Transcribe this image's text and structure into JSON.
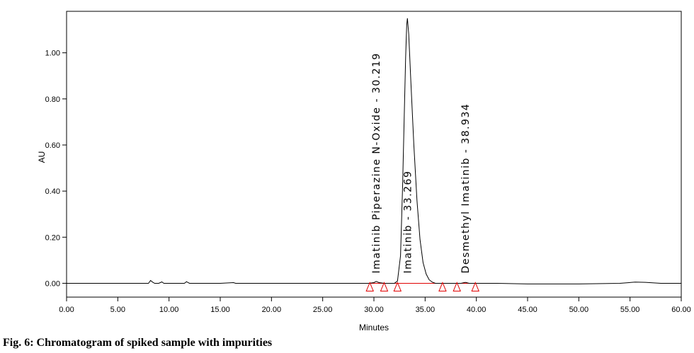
{
  "caption": "Fig. 6: Chromatogram of spiked sample with impurities",
  "chart_data": {
    "type": "line",
    "xlabel": "Minutes",
    "ylabel": "AU",
    "xlim": [
      0,
      60
    ],
    "ylim": [
      -0.06,
      1.18
    ],
    "xticks": [
      "0.00",
      "5.00",
      "10.00",
      "15.00",
      "20.00",
      "25.00",
      "30.00",
      "35.00",
      "40.00",
      "45.00",
      "50.00",
      "55.00",
      "60.00"
    ],
    "xtick_values": [
      0,
      5,
      10,
      15,
      20,
      25,
      30,
      35,
      40,
      45,
      50,
      55,
      60
    ],
    "yticks": [
      "0.00",
      "0.20",
      "0.40",
      "0.60",
      "0.80",
      "1.00"
    ],
    "ytick_values": [
      0,
      0.2,
      0.4,
      0.6,
      0.8,
      1.0
    ],
    "series": [
      {
        "x": [
          0,
          5,
          8.0,
          8.2,
          8.4,
          8.6,
          9.0,
          9.3,
          9.5,
          11.0,
          11.5,
          11.7,
          12,
          15,
          16.3,
          16.5,
          20,
          25,
          28,
          29.5,
          30.0,
          30.22,
          30.5,
          31,
          32,
          32.3,
          32.6,
          32.8,
          33.0,
          33.1,
          33.2,
          33.27,
          33.4,
          33.6,
          33.9,
          34.2,
          34.5,
          34.8,
          35.1,
          35.4,
          35.7,
          36,
          37,
          38.5,
          38.93,
          39.3,
          40,
          42,
          45,
          50,
          54,
          55.5,
          56.5,
          58,
          60
        ],
        "y": [
          0,
          0,
          0,
          0.012,
          0.005,
          0,
          0,
          0.006,
          0,
          0,
          0,
          0.007,
          0,
          0,
          0.003,
          0,
          0,
          0,
          0,
          0,
          0.003,
          0.008,
          0.003,
          0,
          0,
          0.01,
          0.12,
          0.42,
          0.8,
          0.98,
          1.12,
          1.15,
          1.08,
          0.88,
          0.6,
          0.36,
          0.19,
          0.09,
          0.04,
          0.015,
          0.005,
          0,
          0,
          0,
          0.004,
          0,
          0,
          0,
          -0.003,
          -0.003,
          0,
          0.005,
          0.004,
          0,
          0
        ]
      }
    ],
    "baseline_segments": [
      [
        29.6,
        32.3
      ],
      [
        32.3,
        36.7
      ],
      [
        38.1,
        39.9
      ]
    ],
    "markers": [
      29.6,
      31.0,
      32.3,
      36.7,
      38.1,
      39.9
    ],
    "peaks": [
      {
        "label": "Imatinib Piperazine N-Oxide - 30.219",
        "x": 30.219
      },
      {
        "label": "Imatinib - 33.269",
        "x": 33.269
      },
      {
        "label": "Desmethyl Imatinib - 38.934",
        "x": 38.934
      }
    ],
    "trace_color": "#000000",
    "baseline_color": "#e00000",
    "marker_color": "#e00000",
    "grid": false,
    "legend": "none"
  }
}
